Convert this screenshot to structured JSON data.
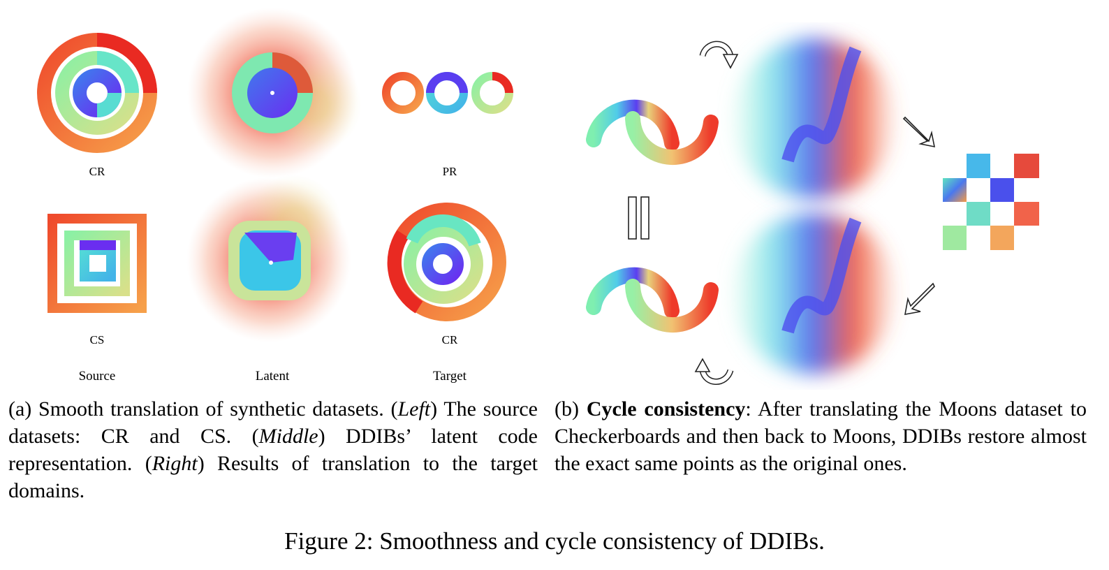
{
  "panel_a": {
    "plots": [
      {
        "position": "top-left",
        "label": "CR"
      },
      {
        "position": "top-right",
        "label": "PR"
      },
      {
        "position": "bottom-left",
        "label": "CS"
      },
      {
        "position": "bottom-right",
        "label": "CR"
      }
    ],
    "columns": [
      "Source",
      "Latent",
      "Target"
    ],
    "caption": {
      "prefix": "(a) Smooth translation of synthetic datasets. (",
      "left_em": "Left",
      "part2": ") The source datasets: CR and CS. (",
      "middle_em": "Middle",
      "part3": ") DDIBs’ latent code representation. (",
      "right_em": "Right",
      "part4": ") Results of translation to the target domains."
    }
  },
  "panel_b": {
    "caption": {
      "prefix": "(b) ",
      "bold": "Cycle consistency",
      "rest": ":  After translating the Moons dataset to Checkerboards and then back to Moons, DDIBs restore almost the exact same points as the original ones."
    }
  },
  "figure_caption": "Figure 2: Smoothness and cycle consistency of DDIBs."
}
